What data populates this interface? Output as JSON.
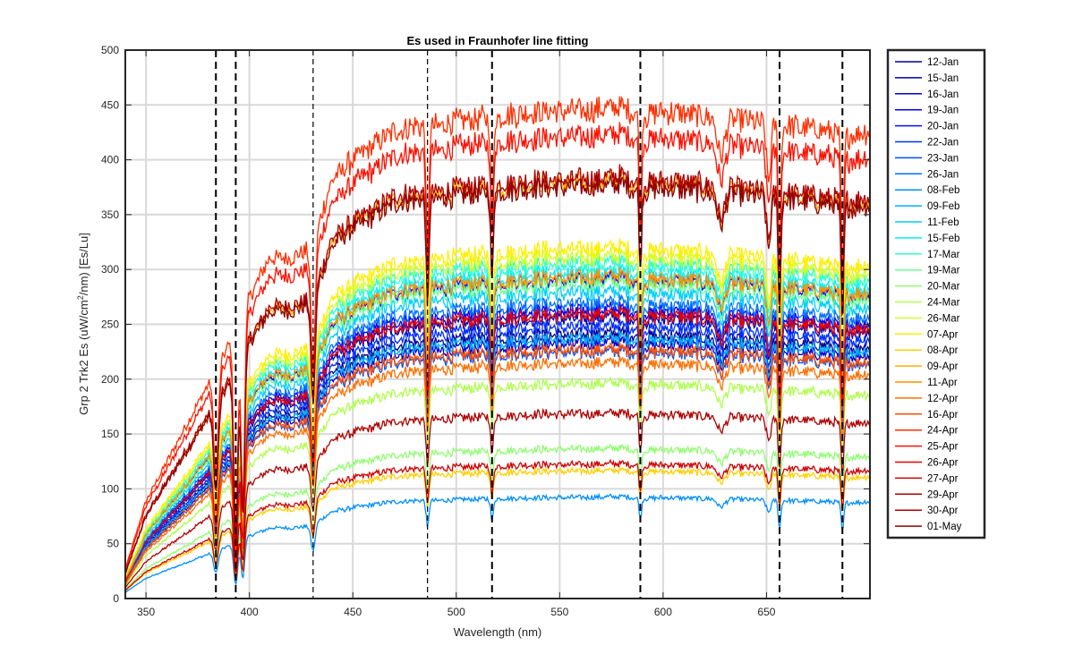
{
  "chart_data": {
    "type": "line",
    "title": "Es used in Fraunhofer line fitting",
    "xlabel": "Wavelength (nm)",
    "ylabel_prefix": "Grp 2 Trk2 Es (uW/cm",
    "ylabel_sup": "2",
    "ylabel_suffix": "/nm) [Es/Lu]",
    "xlim": [
      340,
      700
    ],
    "ylim": [
      0,
      500
    ],
    "xticks": [
      350,
      400,
      450,
      500,
      550,
      600,
      650
    ],
    "yticks": [
      0,
      50,
      100,
      150,
      200,
      250,
      300,
      350,
      400,
      450,
      500
    ],
    "grid": true,
    "legend_position": "outside-right",
    "fraunhofer_lines": [
      {
        "x": 383.8,
        "style": "dashed-thick"
      },
      {
        "x": 393.4,
        "style": "dashed-thick"
      },
      {
        "x": 430.8,
        "style": "dashed-thin"
      },
      {
        "x": 486.1,
        "style": "dashed-thin"
      },
      {
        "x": 517.3,
        "style": "dashed-thick"
      },
      {
        "x": 589.0,
        "style": "dashed-thick"
      },
      {
        "x": 656.3,
        "style": "dashed-thick"
      },
      {
        "x": 686.7,
        "style": "dashed-thick"
      }
    ],
    "series": [
      {
        "name": "12-Jan",
        "color": "#00008f",
        "level": 240
      },
      {
        "name": "15-Jan",
        "color": "#0000af",
        "level": 255
      },
      {
        "name": "16-Jan",
        "color": "#0000cf",
        "level": 232
      },
      {
        "name": "19-Jan",
        "color": "#0000ef",
        "level": 262
      },
      {
        "name": "20-Jan",
        "color": "#000fff",
        "level": 290
      },
      {
        "name": "22-Jan",
        "color": "#002fff",
        "level": 247
      },
      {
        "name": "23-Jan",
        "color": "#004fff",
        "level": 224
      },
      {
        "name": "26-Jan",
        "color": "#006fff",
        "level": 268
      },
      {
        "name": "08-Feb",
        "color": "#008fff",
        "level": 92
      },
      {
        "name": "09-Feb",
        "color": "#00afff",
        "level": 236
      },
      {
        "name": "11-Feb",
        "color": "#00cfff",
        "level": 278
      },
      {
        "name": "15-Feb",
        "color": "#00efff",
        "level": 296
      },
      {
        "name": "17-Mar",
        "color": "#2fffcf",
        "level": 304
      },
      {
        "name": "19-Mar",
        "color": "#6fff8f",
        "level": 286
      },
      {
        "name": "20-Mar",
        "color": "#8fff6f",
        "level": 136
      },
      {
        "name": "24-Mar",
        "color": "#afff4f",
        "level": 195
      },
      {
        "name": "26-Mar",
        "color": "#cfff2f",
        "level": 310
      },
      {
        "name": "07-Apr",
        "color": "#ffef00",
        "level": 318
      },
      {
        "name": "08-Apr",
        "color": "#ffcf00",
        "level": 116
      },
      {
        "name": "09-Apr",
        "color": "#ffaf00",
        "level": 378
      },
      {
        "name": "11-Apr",
        "color": "#ff8f00",
        "level": 292
      },
      {
        "name": "12-Apr",
        "color": "#ff6f00",
        "level": 214
      },
      {
        "name": "16-Apr",
        "color": "#ff4f00",
        "level": 226
      },
      {
        "name": "24-Apr",
        "color": "#ff2f00",
        "level": 444
      },
      {
        "name": "25-Apr",
        "color": "#ff1000",
        "level": 420
      },
      {
        "name": "26-Apr",
        "color": "#ef0000",
        "level": 258
      },
      {
        "name": "27-Apr",
        "color": "#cf0000",
        "level": 122
      },
      {
        "name": "29-Apr",
        "color": "#af0000",
        "level": 168
      },
      {
        "name": "30-Apr",
        "color": "#af0000",
        "level": 382
      },
      {
        "name": "01-May",
        "color": "#8f0000",
        "level": 374
      }
    ]
  }
}
